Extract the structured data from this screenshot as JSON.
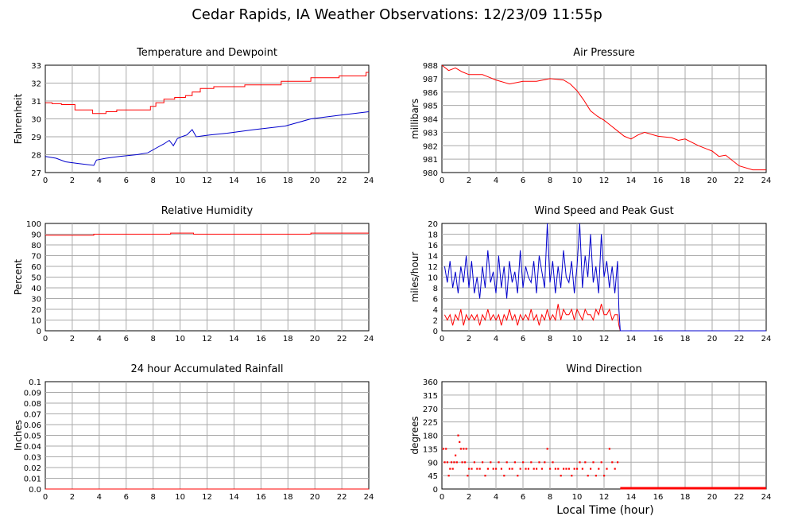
{
  "title": "Cedar Rapids, IA Weather Observations: 12/23/09 11:55p",
  "xlabel": "Local Time (hour)",
  "colors": {
    "red": "#ff0000",
    "blue": "#0000cc",
    "grid": "#aaaaaa"
  },
  "chart_data": [
    {
      "id": "temp",
      "type": "line",
      "title": "Temperature and Dewpoint",
      "ylabel": "Fahrenheit",
      "xlim": [
        0,
        24
      ],
      "ylim": [
        27,
        33
      ],
      "xticks": [
        0,
        2,
        4,
        6,
        8,
        10,
        12,
        14,
        16,
        18,
        20,
        22,
        24
      ],
      "yticks": [
        27,
        28,
        29,
        30,
        31,
        32,
        33
      ],
      "grid": true,
      "series": [
        {
          "color": "#ff0000",
          "step": true,
          "x": [
            0,
            0.5,
            1.2,
            2.2,
            3.5,
            4.5,
            5.3,
            7.8,
            8.2,
            8.8,
            9.6,
            10.4,
            10.9,
            11.5,
            12.5,
            14.8,
            17.5,
            19.7,
            21.8,
            23.8,
            24
          ],
          "y": [
            30.9,
            30.85,
            30.8,
            30.5,
            30.3,
            30.4,
            30.5,
            30.7,
            30.9,
            31.1,
            31.2,
            31.3,
            31.5,
            31.7,
            31.8,
            31.9,
            32.1,
            32.3,
            32.4,
            32.6,
            32.6
          ]
        },
        {
          "color": "#0000cc",
          "step": false,
          "x": [
            0,
            0.8,
            1.5,
            2.5,
            3.6,
            3.8,
            4.5,
            5.5,
            6.8,
            7.6,
            8.3,
            8.8,
            9.2,
            9.5,
            9.8,
            10.1,
            10.5,
            10.9,
            11.2,
            12.2,
            13.5,
            15.5,
            17.8,
            19.7,
            21.8,
            24
          ],
          "y": [
            27.9,
            27.8,
            27.6,
            27.5,
            27.4,
            27.7,
            27.8,
            27.9,
            28.0,
            28.1,
            28.4,
            28.6,
            28.8,
            28.5,
            28.9,
            29.0,
            29.1,
            29.4,
            29.0,
            29.1,
            29.2,
            29.4,
            29.6,
            30.0,
            30.2,
            30.4
          ]
        }
      ]
    },
    {
      "id": "pressure",
      "type": "line",
      "title": "Air Pressure",
      "ylabel": "millibars",
      "xlim": [
        0,
        24
      ],
      "ylim": [
        980,
        988
      ],
      "xticks": [
        0,
        2,
        4,
        6,
        8,
        10,
        12,
        14,
        16,
        18,
        20,
        22,
        24
      ],
      "yticks": [
        980,
        981,
        982,
        983,
        984,
        985,
        986,
        987,
        988
      ],
      "grid": true,
      "series": [
        {
          "color": "#ff0000",
          "step": false,
          "x": [
            0,
            0.5,
            1.0,
            1.5,
            2.0,
            3.0,
            3.5,
            4.0,
            5.0,
            6.0,
            7.0,
            8.0,
            9.0,
            9.5,
            10.0,
            10.5,
            11.0,
            11.5,
            12.0,
            12.5,
            13.0,
            13.5,
            14.0,
            14.5,
            15.0,
            16.0,
            17.0,
            17.5,
            18.0,
            19.0,
            20.0,
            20.5,
            21.0,
            22.0,
            23.0,
            24.0
          ],
          "y": [
            988.0,
            987.6,
            987.8,
            987.5,
            987.3,
            987.3,
            987.1,
            986.9,
            986.6,
            986.8,
            986.8,
            987.0,
            986.9,
            986.6,
            986.1,
            985.4,
            984.6,
            984.2,
            983.9,
            983.5,
            983.1,
            982.7,
            982.5,
            982.8,
            983.0,
            982.7,
            982.6,
            982.4,
            982.5,
            982.0,
            981.6,
            981.2,
            981.3,
            980.5,
            980.2,
            980.2
          ]
        }
      ]
    },
    {
      "id": "humidity",
      "type": "line",
      "title": "Relative Humidity",
      "ylabel": "Percent",
      "xlim": [
        0,
        24
      ],
      "ylim": [
        0,
        100
      ],
      "xticks": [
        0,
        2,
        4,
        6,
        8,
        10,
        12,
        14,
        16,
        18,
        20,
        22,
        24
      ],
      "yticks": [
        0,
        10,
        20,
        30,
        40,
        50,
        60,
        70,
        80,
        90,
        100
      ],
      "grid": true,
      "series": [
        {
          "color": "#ff0000",
          "step": true,
          "x": [
            0,
            3.6,
            9.3,
            11.0,
            19.7,
            24
          ],
          "y": [
            89,
            90,
            91,
            90,
            91,
            91
          ]
        }
      ]
    },
    {
      "id": "wind",
      "type": "line",
      "title": "Wind Speed and Peak Gust",
      "ylabel": "miles/hour",
      "xlim": [
        0,
        24
      ],
      "ylim": [
        0,
        20
      ],
      "xticks": [
        0,
        2,
        4,
        6,
        8,
        10,
        12,
        14,
        16,
        18,
        20,
        22,
        24
      ],
      "yticks": [
        0,
        2,
        4,
        6,
        8,
        10,
        12,
        14,
        16,
        18,
        20
      ],
      "grid": true,
      "series": [
        {
          "color": "#0000cc",
          "step": false,
          "x": [
            0.2,
            0.4,
            0.6,
            0.8,
            1.0,
            1.2,
            1.4,
            1.6,
            1.8,
            2.0,
            2.2,
            2.4,
            2.6,
            2.8,
            3.0,
            3.2,
            3.4,
            3.6,
            3.8,
            4.0,
            4.2,
            4.4,
            4.6,
            4.8,
            5.0,
            5.2,
            5.4,
            5.6,
            5.8,
            6.0,
            6.2,
            6.4,
            6.6,
            6.8,
            7.0,
            7.2,
            7.4,
            7.6,
            7.8,
            8.0,
            8.2,
            8.4,
            8.6,
            8.8,
            9.0,
            9.2,
            9.4,
            9.6,
            9.8,
            10.0,
            10.2,
            10.4,
            10.6,
            10.8,
            11.0,
            11.2,
            11.4,
            11.6,
            11.8,
            12.0,
            12.2,
            12.4,
            12.6,
            12.8,
            13.0,
            13.1
          ],
          "y": [
            12,
            9,
            13,
            8,
            11,
            7,
            12,
            9,
            14,
            8,
            13,
            7,
            10,
            6,
            12,
            8,
            15,
            9,
            11,
            7,
            14,
            8,
            12,
            6,
            13,
            9,
            11,
            7,
            15,
            8,
            12,
            10,
            9,
            13,
            7,
            14,
            11,
            8,
            20,
            9,
            13,
            7,
            12,
            8,
            15,
            10,
            9,
            13,
            7,
            12,
            20,
            8,
            14,
            10,
            18,
            9,
            12,
            7,
            18,
            10,
            13,
            8,
            12,
            7,
            13,
            4
          ]
        },
        {
          "color": "#ff0000",
          "step": false,
          "x": [
            0.2,
            0.4,
            0.6,
            0.8,
            1.0,
            1.2,
            1.4,
            1.6,
            1.8,
            2.0,
            2.2,
            2.4,
            2.6,
            2.8,
            3.0,
            3.2,
            3.4,
            3.6,
            3.8,
            4.0,
            4.2,
            4.4,
            4.6,
            4.8,
            5.0,
            5.2,
            5.4,
            5.6,
            5.8,
            6.0,
            6.2,
            6.4,
            6.6,
            6.8,
            7.0,
            7.2,
            7.4,
            7.6,
            7.8,
            8.0,
            8.2,
            8.4,
            8.6,
            8.8,
            9.0,
            9.2,
            9.4,
            9.6,
            9.8,
            10.0,
            10.2,
            10.4,
            10.6,
            10.8,
            11.0,
            11.2,
            11.4,
            11.6,
            11.8,
            12.0,
            12.2,
            12.4,
            12.6,
            12.8,
            13.0,
            13.1,
            13.2,
            24
          ],
          "y": [
            3,
            2,
            3,
            1,
            3,
            2,
            4,
            1,
            3,
            2,
            3,
            2,
            3,
            1,
            3,
            2,
            4,
            2,
            3,
            2,
            3,
            1,
            3,
            2,
            4,
            2,
            3,
            1,
            3,
            2,
            3,
            2,
            4,
            2,
            3,
            1,
            3,
            2,
            4,
            2,
            3,
            2,
            5,
            2,
            4,
            3,
            3,
            4,
            2,
            4,
            3,
            2,
            4,
            3,
            3,
            2,
            4,
            3,
            5,
            3,
            3,
            4,
            2,
            3,
            3,
            1,
            0,
            0
          ]
        },
        {
          "color": "#0000cc",
          "step": false,
          "x": [
            13.1,
            13.2,
            24
          ],
          "y": [
            4,
            0,
            0
          ]
        }
      ]
    },
    {
      "id": "rain",
      "type": "line",
      "title": "24 hour Accumulated Rainfall",
      "ylabel": "Inches",
      "xlim": [
        0,
        24
      ],
      "ylim": [
        0,
        0.1
      ],
      "xticks": [
        0,
        2,
        4,
        6,
        8,
        10,
        12,
        14,
        16,
        18,
        20,
        22,
        24
      ],
      "yticks": [
        0,
        0.01,
        0.02,
        0.03,
        0.04,
        0.05,
        0.06,
        0.07,
        0.08,
        0.09,
        0.1
      ],
      "ytick_labels": [
        "0.0",
        "0.01",
        "0.02",
        "0.03",
        "0.04",
        "0.05",
        "0.06",
        "0.07",
        "0.08",
        "0.09",
        "0.1"
      ],
      "grid": true,
      "series": [
        {
          "color": "#ff0000",
          "step": false,
          "x": [
            0,
            24
          ],
          "y": [
            0,
            0
          ]
        }
      ]
    },
    {
      "id": "direction",
      "type": "scatter",
      "title": "Wind Direction",
      "ylabel": "degrees",
      "xlim": [
        0,
        24
      ],
      "ylim": [
        0,
        360
      ],
      "xticks": [
        0,
        2,
        4,
        6,
        8,
        10,
        12,
        14,
        16,
        18,
        20,
        22,
        24
      ],
      "yticks": [
        0,
        45,
        90,
        135,
        180,
        225,
        270,
        315,
        360
      ],
      "grid": true,
      "series": [
        {
          "color": "#ff0000",
          "step": false,
          "x": [
            0.1,
            0.2,
            0.3,
            0.4,
            0.5,
            0.6,
            0.7,
            0.8,
            0.9,
            1.0,
            1.1,
            1.2,
            1.3,
            1.4,
            1.5,
            1.6,
            1.7,
            1.8,
            1.9,
            2.0,
            2.2,
            2.4,
            2.6,
            2.8,
            3.0,
            3.2,
            3.4,
            3.6,
            3.8,
            4.0,
            4.2,
            4.4,
            4.6,
            4.8,
            5.0,
            5.2,
            5.4,
            5.6,
            5.8,
            6.0,
            6.2,
            6.4,
            6.6,
            6.8,
            7.0,
            7.2,
            7.4,
            7.6,
            7.8,
            8.0,
            8.2,
            8.4,
            8.6,
            8.8,
            9.0,
            9.2,
            9.4,
            9.6,
            9.8,
            10.0,
            10.2,
            10.4,
            10.6,
            10.8,
            11.0,
            11.2,
            11.4,
            11.6,
            11.8,
            12.0,
            12.2,
            12.4,
            12.6,
            12.8,
            13.0,
            13.2,
            13.6,
            14.0,
            14.5,
            15.0,
            15.5,
            16.0,
            16.5,
            17.0,
            17.5,
            18.0,
            18.5,
            19.0,
            19.5,
            20.0,
            20.5,
            21.0,
            21.5,
            22.0,
            22.5,
            23.0,
            23.5,
            24.0
          ],
          "y": [
            135,
            90,
            135,
            90,
            45,
            68,
            90,
            68,
            90,
            113,
            90,
            180,
            158,
            135,
            90,
            135,
            90,
            135,
            45,
            68,
            68,
            90,
            68,
            68,
            90,
            45,
            68,
            90,
            68,
            68,
            90,
            68,
            45,
            90,
            68,
            68,
            90,
            45,
            68,
            90,
            68,
            68,
            90,
            68,
            68,
            90,
            68,
            90,
            135,
            68,
            90,
            68,
            68,
            45,
            68,
            68,
            68,
            45,
            68,
            68,
            90,
            68,
            90,
            45,
            68,
            90,
            45,
            68,
            90,
            45,
            68,
            135,
            90,
            68,
            90,
            0,
            0,
            0,
            0,
            0,
            0,
            0,
            0,
            0,
            0,
            0,
            0,
            0,
            0,
            0,
            0,
            0,
            0,
            0,
            0,
            0,
            0,
            0
          ]
        }
      ]
    }
  ]
}
